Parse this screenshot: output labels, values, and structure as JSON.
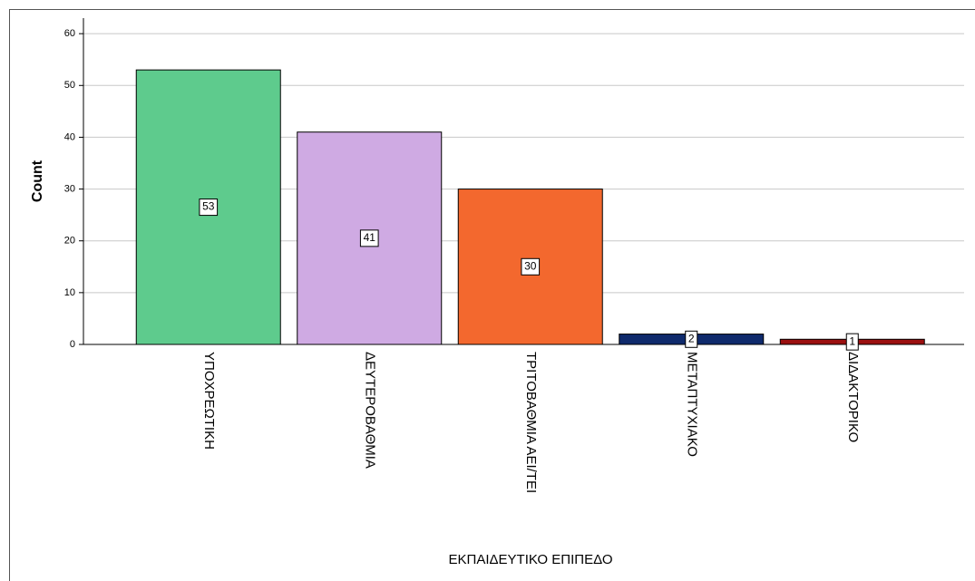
{
  "chart_data": {
    "type": "bar",
    "categories": [
      "ΥΠΟΧΡΕΩΤΙΚΗ",
      "ΔΕΥΤΕΡΟΒΑΘΜΙΑ",
      "ΤΡΙΤΟΒΑΘΜΙΑ ΑΕΙ/ΤΕΙ",
      "ΜΕΤΑΠΤΥΧΙΑΚΟ",
      "ΔΙΔΑΚΤΟΡΙΚΟ"
    ],
    "values": [
      53,
      41,
      30,
      2,
      1
    ],
    "colors": [
      "#5ecb8d",
      "#cfaae3",
      "#f3682e",
      "#0f2a6c",
      "#9b1010"
    ],
    "x_label": "ΕΚΠΑΙΔΕΥΤΙΚΟ ΕΠΙΠΕΔΟ",
    "y_label": "Count",
    "ylim": [
      0,
      63
    ],
    "yticks": [
      0,
      10,
      20,
      30,
      40,
      50,
      60
    ],
    "grid": true
  }
}
